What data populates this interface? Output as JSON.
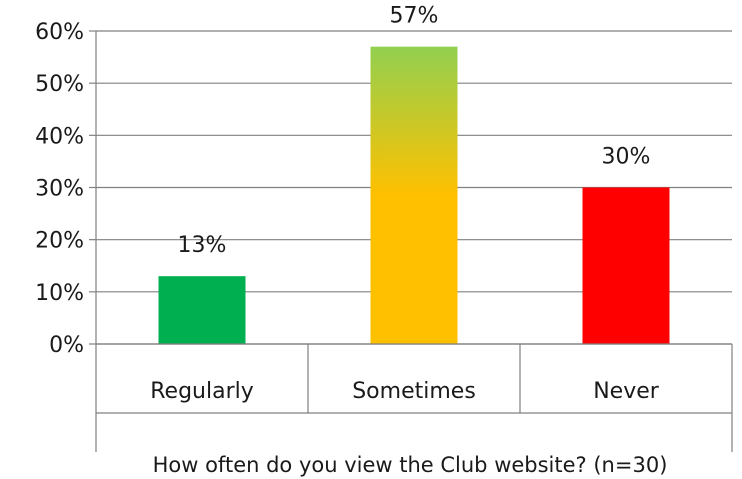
{
  "chart_data": {
    "type": "bar",
    "categories": [
      "Regularly",
      "Sometimes",
      "Never"
    ],
    "values": [
      13,
      57,
      30
    ],
    "data_labels": [
      "13%",
      "57%",
      "30%"
    ],
    "xlabel": "How often do you view the Club website? (n=30)",
    "ylabel": "",
    "ylim": [
      0,
      60
    ],
    "yticks": [
      0,
      10,
      20,
      30,
      40,
      50,
      60
    ],
    "ytick_labels": [
      "0%",
      "10%",
      "20%",
      "30%",
      "40%",
      "50%",
      "60%"
    ],
    "grid": true,
    "legend": "none",
    "colors": {
      "Regularly": "#00b050",
      "Sometimes_top": "#92d050",
      "Sometimes_bottom": "#ffc000",
      "Never": "#ff0000"
    }
  }
}
